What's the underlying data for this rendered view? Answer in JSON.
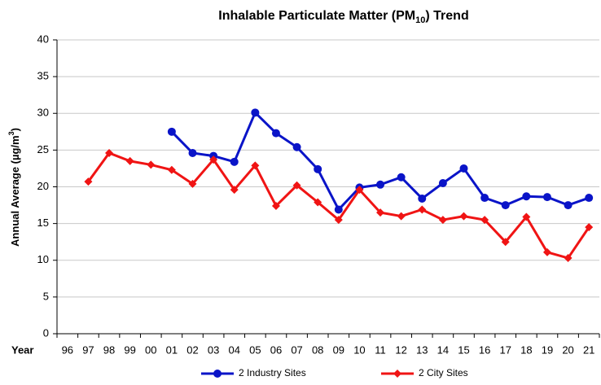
{
  "chart_data": {
    "type": "line",
    "title": "Inhalable Particulate Matter (PM",
    "title_sub": "10",
    "title_end": ") Trend",
    "y_label": "Annual Average (µg/m",
    "y_label_sup": "3",
    "y_label_end": ")",
    "x_label": "Year",
    "categories": [
      "96",
      "97",
      "98",
      "99",
      "00",
      "01",
      "02",
      "03",
      "04",
      "05",
      "06",
      "07",
      "08",
      "09",
      "10",
      "11",
      "12",
      "13",
      "14",
      "15",
      "16",
      "17",
      "18",
      "19",
      "20",
      "21"
    ],
    "series": [
      {
        "name": "2 Industry Sites",
        "color": "#0a14c8",
        "marker": "circle",
        "values": [
          null,
          null,
          null,
          null,
          null,
          27.5,
          24.6,
          24.2,
          23.4,
          30.1,
          27.3,
          25.4,
          22.4,
          16.9,
          19.9,
          20.3,
          21.3,
          18.4,
          20.5,
          22.5,
          18.5,
          17.5,
          18.7,
          18.6,
          17.5,
          18.5
        ]
      },
      {
        "name": "2 City Sites",
        "color": "#f01414",
        "marker": "diamond",
        "values": [
          null,
          20.7,
          24.6,
          23.5,
          23.0,
          22.3,
          20.4,
          23.7,
          19.6,
          22.9,
          17.4,
          20.2,
          17.9,
          15.5,
          19.6,
          16.5,
          16.0,
          16.9,
          15.5,
          16.0,
          15.5,
          12.5,
          15.9,
          11.1,
          10.3,
          14.5
        ]
      }
    ],
    "ylim": [
      0,
      40
    ],
    "yticks": [
      0,
      5,
      10,
      15,
      20,
      25,
      30,
      35,
      40
    ],
    "grid": true,
    "legend": "bottom"
  }
}
